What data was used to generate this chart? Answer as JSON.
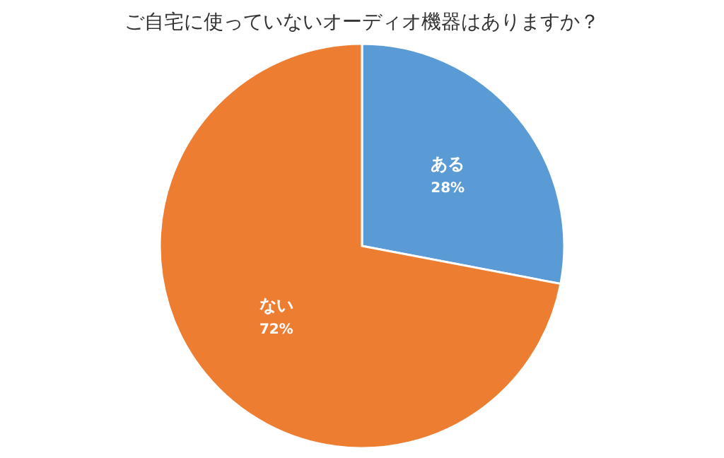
{
  "chart_data": {
    "type": "pie",
    "title": "ご自宅に使っていないオーディオ機器はありますか？",
    "categories": [
      "ある",
      "ない"
    ],
    "values": [
      28,
      72
    ],
    "value_labels": [
      "28%",
      "72%"
    ],
    "colors": [
      "#5b9bd5",
      "#ed7d31"
    ]
  }
}
